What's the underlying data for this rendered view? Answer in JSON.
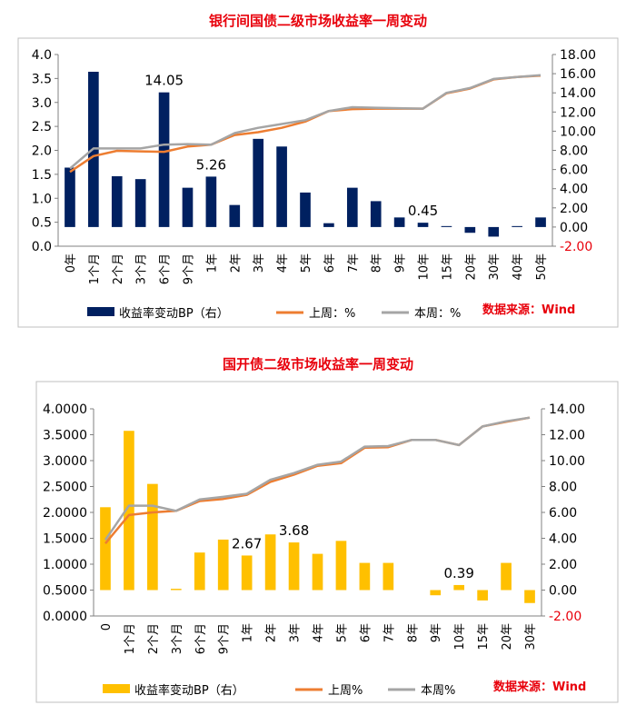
{
  "chart_data": [
    {
      "type": "bar",
      "title": "银行间国债二级市场收益率一周变动",
      "categories": [
        "0年",
        "1个月",
        "2个月",
        "3个月",
        "6个月",
        "9个月",
        "1年",
        "2年",
        "3年",
        "4年",
        "5年",
        "6年",
        "7年",
        "8年",
        "9年",
        "10年",
        "15年",
        "20年",
        "30年",
        "40年",
        "50年"
      ],
      "left_axis": {
        "min": 0.0,
        "max": 4.0,
        "step": 0.5,
        "ticks": [
          "0.0",
          "0.5",
          "1.0",
          "1.5",
          "2.0",
          "2.5",
          "3.0",
          "3.5",
          "4.0"
        ]
      },
      "right_axis": {
        "min": -2.0,
        "max": 18.0,
        "step": 2.0,
        "ticks": [
          "-2.00",
          "0.00",
          "2.00",
          "4.00",
          "6.00",
          "8.00",
          "10.00",
          "12.00",
          "14.00",
          "16.00",
          "18.00"
        ]
      },
      "bar_series": {
        "name": "收益率变动BP（右）",
        "color": "#002060",
        "values": [
          6.2,
          16.2,
          5.3,
          5.0,
          14.05,
          4.1,
          5.26,
          2.3,
          9.2,
          8.4,
          3.6,
          0.4,
          4.1,
          2.7,
          1.0,
          0.45,
          0.1,
          -0.6,
          -1.0,
          0.1,
          1.0
        ]
      },
      "line_series": [
        {
          "name": "上周：%",
          "color": "#ed7d31",
          "values": [
            1.55,
            1.88,
            1.99,
            1.98,
            1.97,
            2.08,
            2.12,
            2.32,
            2.38,
            2.47,
            2.6,
            2.82,
            2.86,
            2.87,
            2.87,
            2.87,
            3.19,
            3.29,
            3.48,
            3.53,
            3.56
          ]
        },
        {
          "name": "本周：%",
          "color": "#a5a5a5",
          "values": [
            1.62,
            2.04,
            2.04,
            2.04,
            2.12,
            2.13,
            2.12,
            2.36,
            2.47,
            2.55,
            2.63,
            2.82,
            2.9,
            2.89,
            2.88,
            2.87,
            3.2,
            3.3,
            3.49,
            3.53,
            3.57
          ]
        }
      ],
      "data_labels": [
        {
          "index": 4,
          "text": "14.05"
        },
        {
          "index": 6,
          "text": "5.26"
        },
        {
          "index": 15,
          "text": "0.45"
        }
      ],
      "source": "数据来源：Wind"
    },
    {
      "type": "bar",
      "title": "国开债二级市场收益率一周变动",
      "categories": [
        "0",
        "1个月",
        "2个月",
        "3个月",
        "6个月",
        "9个月",
        "1年",
        "2年",
        "3年",
        "4年",
        "5年",
        "6年",
        "7年",
        "8年",
        "9年",
        "10年",
        "15年",
        "20年",
        "30年"
      ],
      "left_axis": {
        "min": 0.0,
        "max": 4.0,
        "step": 0.5,
        "ticks": [
          "0.0000",
          "0.5000",
          "1.0000",
          "1.5000",
          "2.0000",
          "2.5000",
          "3.0000",
          "3.5000",
          "4.0000"
        ]
      },
      "right_axis": {
        "min": -2.0,
        "max": 14.0,
        "step": 2.0,
        "ticks": [
          "-2.00",
          "0.00",
          "2.00",
          "4.00",
          "6.00",
          "8.00",
          "10.00",
          "12.00",
          "14.00"
        ]
      },
      "bar_series": {
        "name": "收益率变动BP（右）",
        "color": "#ffc000",
        "values": [
          6.4,
          12.3,
          8.2,
          0.1,
          2.9,
          3.9,
          2.67,
          4.3,
          3.68,
          2.8,
          3.8,
          2.1,
          2.1,
          0.0,
          -0.4,
          0.39,
          -0.8,
          2.1,
          -1.0
        ]
      },
      "line_series": [
        {
          "name": "上周%",
          "color": "#ed7d31",
          "values": [
            1.4,
            1.95,
            2.0,
            2.03,
            2.22,
            2.26,
            2.34,
            2.59,
            2.73,
            2.9,
            2.95,
            3.25,
            3.26,
            3.4,
            3.4,
            3.3,
            3.66,
            3.75,
            3.83
          ]
        },
        {
          "name": "本周%",
          "color": "#a5a5a5",
          "values": [
            1.47,
            2.13,
            2.13,
            2.03,
            2.25,
            2.3,
            2.36,
            2.63,
            2.76,
            2.92,
            2.98,
            3.27,
            3.28,
            3.4,
            3.4,
            3.3,
            3.66,
            3.76,
            3.83
          ]
        }
      ],
      "data_labels": [
        {
          "index": 6,
          "text": "2.67"
        },
        {
          "index": 8,
          "text": "3.68"
        },
        {
          "index": 15,
          "text": "0.39"
        }
      ],
      "source": "数据来源：Wind"
    }
  ]
}
